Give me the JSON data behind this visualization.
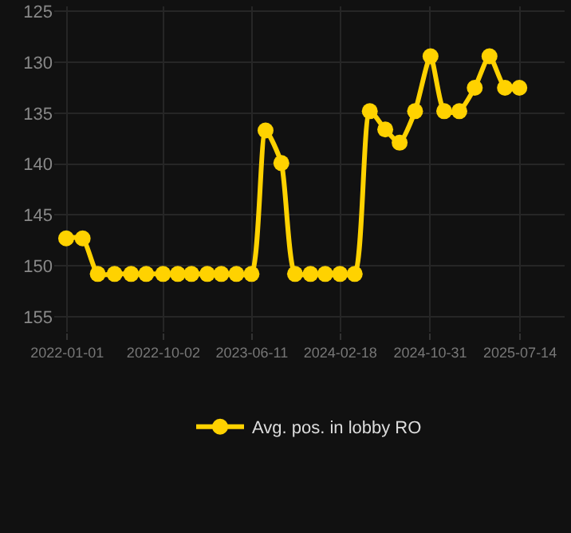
{
  "chart_data": {
    "type": "line",
    "x": [
      "2021-12-29",
      "2022-02-14",
      "2022-03-29",
      "2022-05-16",
      "2022-07-02",
      "2022-08-14",
      "2022-10-01",
      "2022-11-12",
      "2022-12-21",
      "2023-02-04",
      "2023-03-16",
      "2023-04-28",
      "2023-06-10",
      "2023-07-20",
      "2023-09-03",
      "2023-10-12",
      "2023-11-25",
      "2024-01-06",
      "2024-02-17",
      "2024-03-30",
      "2024-05-12",
      "2024-06-25",
      "2024-08-05",
      "2024-09-18",
      "2024-11-01",
      "2024-12-10",
      "2025-01-22",
      "2025-03-07",
      "2025-04-18",
      "2025-06-01",
      "2025-07-12"
    ],
    "series": [
      {
        "name": "Avg. pos. in lobby RO",
        "color": "#ffd200",
        "values": [
          147.3,
          147.3,
          150.8,
          150.8,
          150.8,
          150.8,
          150.8,
          150.8,
          150.8,
          150.8,
          150.8,
          150.8,
          150.8,
          136.7,
          139.9,
          150.8,
          150.8,
          150.8,
          150.8,
          150.8,
          134.8,
          136.6,
          137.9,
          134.8,
          129.4,
          134.8,
          134.8,
          132.5,
          129.4,
          132.5,
          132.5
        ]
      }
    ],
    "xlim": [
      "2021-11-25",
      "2025-11-18"
    ],
    "xticks": [
      "2022-01-01",
      "2022-10-02",
      "2023-06-11",
      "2024-02-18",
      "2024-10-31",
      "2025-07-14"
    ],
    "ylim": [
      156.5,
      124.5
    ],
    "yticks": [
      125,
      130,
      135,
      140,
      145,
      150,
      155
    ],
    "grid": true,
    "legend": "bottom",
    "marker": "circle",
    "line_style": "solid"
  }
}
